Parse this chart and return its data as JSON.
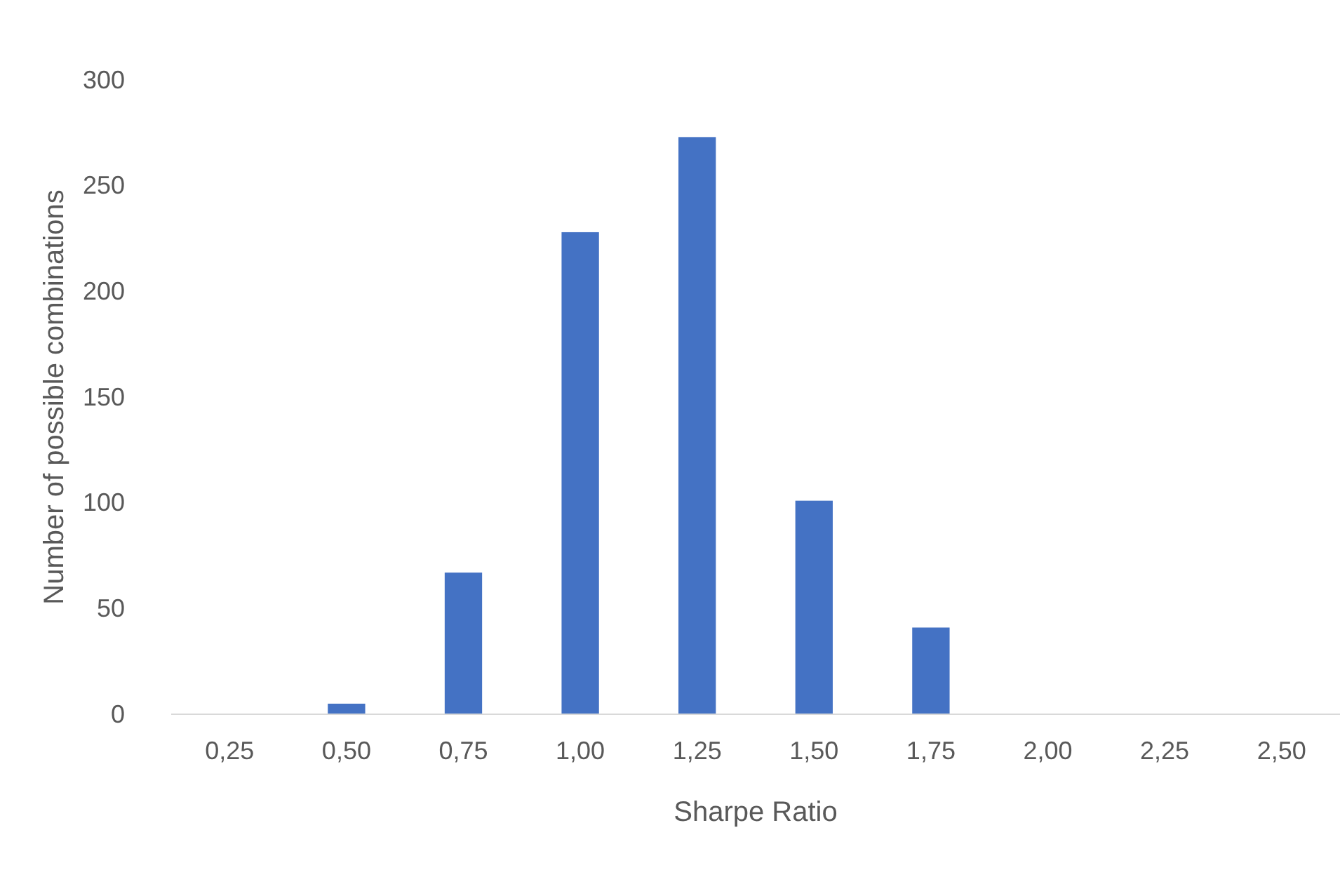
{
  "chart_data": {
    "type": "bar",
    "xlabel": "Sharpe Ratio",
    "ylabel": "Number of possible combinations",
    "categories": [
      "0,25",
      "0,50",
      "0,75",
      "1,00",
      "1,25",
      "1,50",
      "1,75",
      "2,00",
      "2,25",
      "2,50"
    ],
    "values": [
      0,
      5,
      67,
      228,
      273,
      101,
      41,
      0,
      0,
      0
    ],
    "color": "#4472c4",
    "ylim": [
      0,
      300
    ],
    "yticks": [
      0,
      50,
      100,
      150,
      200,
      250,
      300
    ],
    "grid": false
  }
}
